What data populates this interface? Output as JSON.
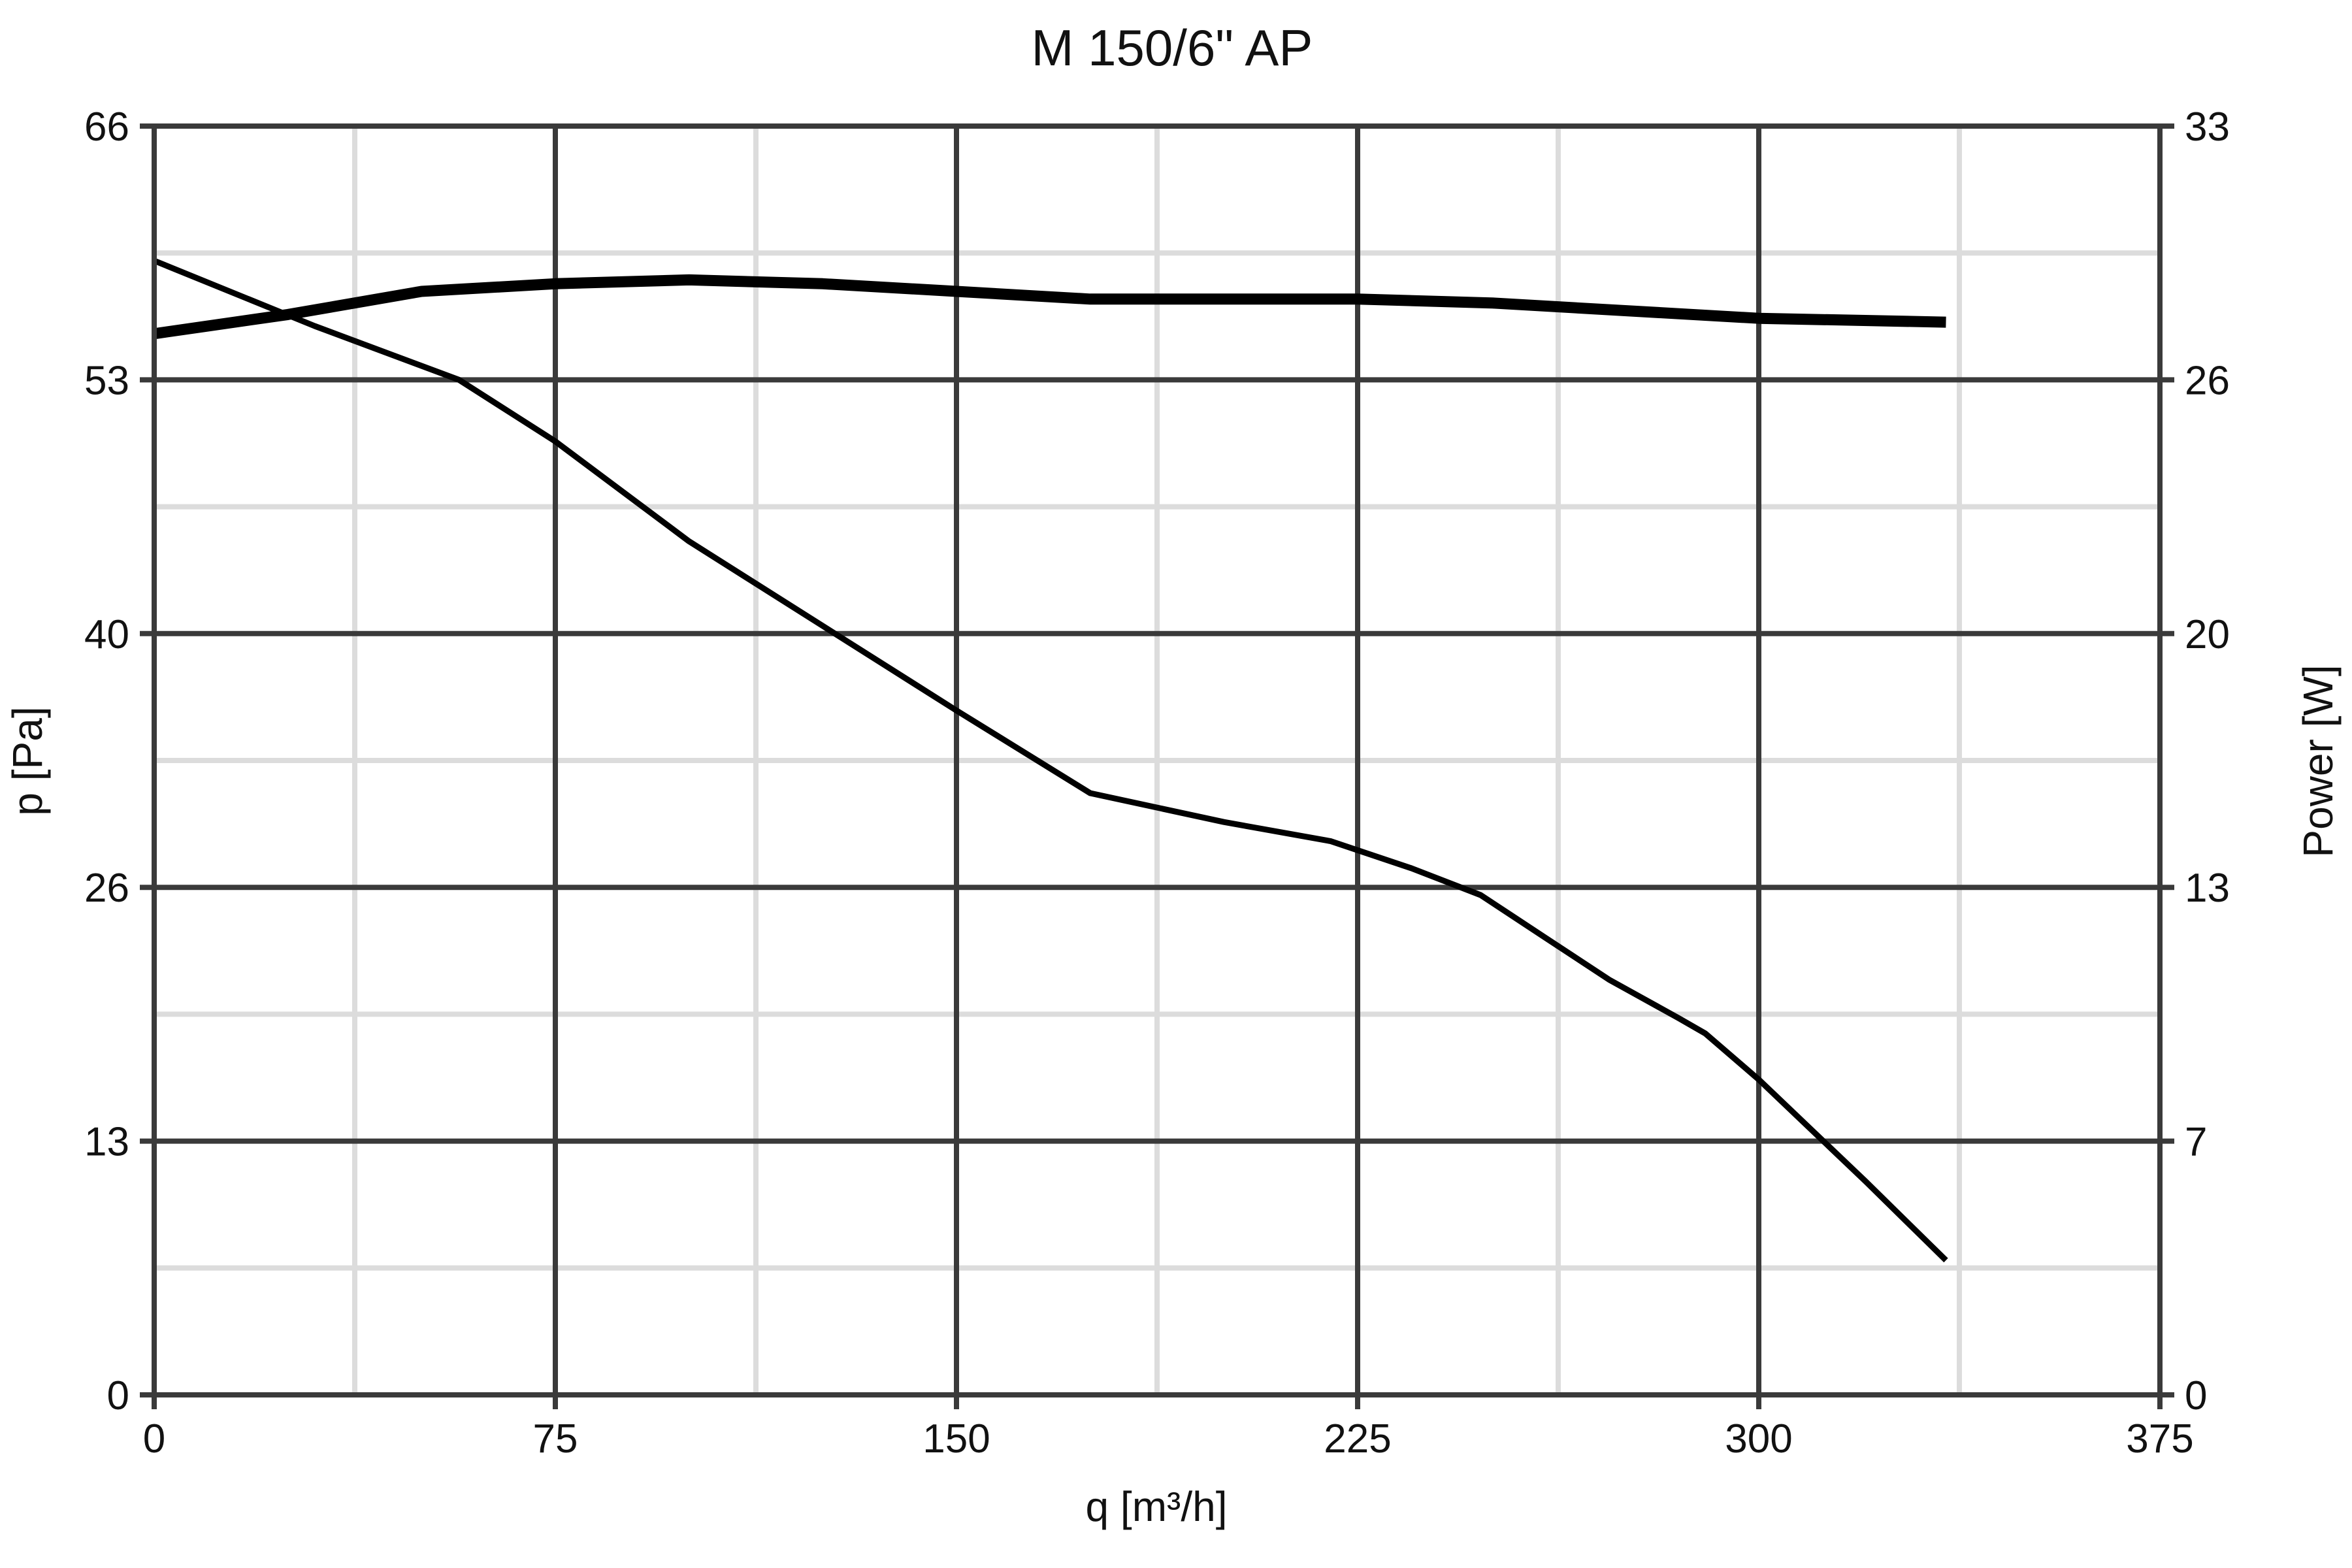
{
  "chart_data": {
    "type": "line",
    "title": "M 150/6\" AP",
    "xlabel": "q [m³/h]",
    "ylabel": "p [Pa]",
    "y2label": "Power [W]",
    "xlim": [
      0,
      375
    ],
    "ylim": [
      0,
      66
    ],
    "y2lim": [
      0,
      33
    ],
    "x_ticks": [
      0,
      75,
      150,
      225,
      300,
      375
    ],
    "x_tick_labels": [
      "0",
      "75",
      "150",
      "225",
      "300",
      "375"
    ],
    "y_ticks": [
      0,
      13.2,
      26.4,
      39.6,
      52.8,
      66
    ],
    "y_tick_labels": [
      "0",
      "13",
      "26",
      "40",
      "53",
      "66"
    ],
    "y2_ticks": [
      0,
      6.6,
      13.2,
      19.8,
      26.4,
      33
    ],
    "y2_tick_labels": [
      "0",
      "7",
      "13",
      "20",
      "26",
      "33"
    ],
    "grid": true,
    "series": [
      {
        "axis": "left",
        "x": [
          0,
          30,
          57,
          75,
          100,
          125,
          150,
          175,
          200,
          220,
          235,
          248,
          260,
          272,
          285,
          290,
          300,
          320,
          335
        ],
        "y": [
          59.0,
          55.6,
          52.8,
          49.6,
          44.4,
          40.0,
          35.6,
          31.3,
          29.8,
          28.8,
          27.4,
          26.0,
          23.8,
          21.6,
          19.6,
          18.8,
          16.4,
          11.1,
          7.0
        ]
      },
      {
        "axis": "right",
        "x": [
          0,
          25,
          50,
          75,
          100,
          125,
          150,
          175,
          200,
          225,
          250,
          275,
          300,
          335
        ],
        "y": [
          27.6,
          28.1,
          28.7,
          28.9,
          29.0,
          28.9,
          28.7,
          28.5,
          28.5,
          28.5,
          28.4,
          28.2,
          28.0,
          27.9
        ]
      }
    ],
    "colors": {
      "curve": "#000000",
      "major_grid": "#3a3a3a",
      "minor_grid": "#dcdcdc",
      "background": "#ffffff"
    }
  }
}
